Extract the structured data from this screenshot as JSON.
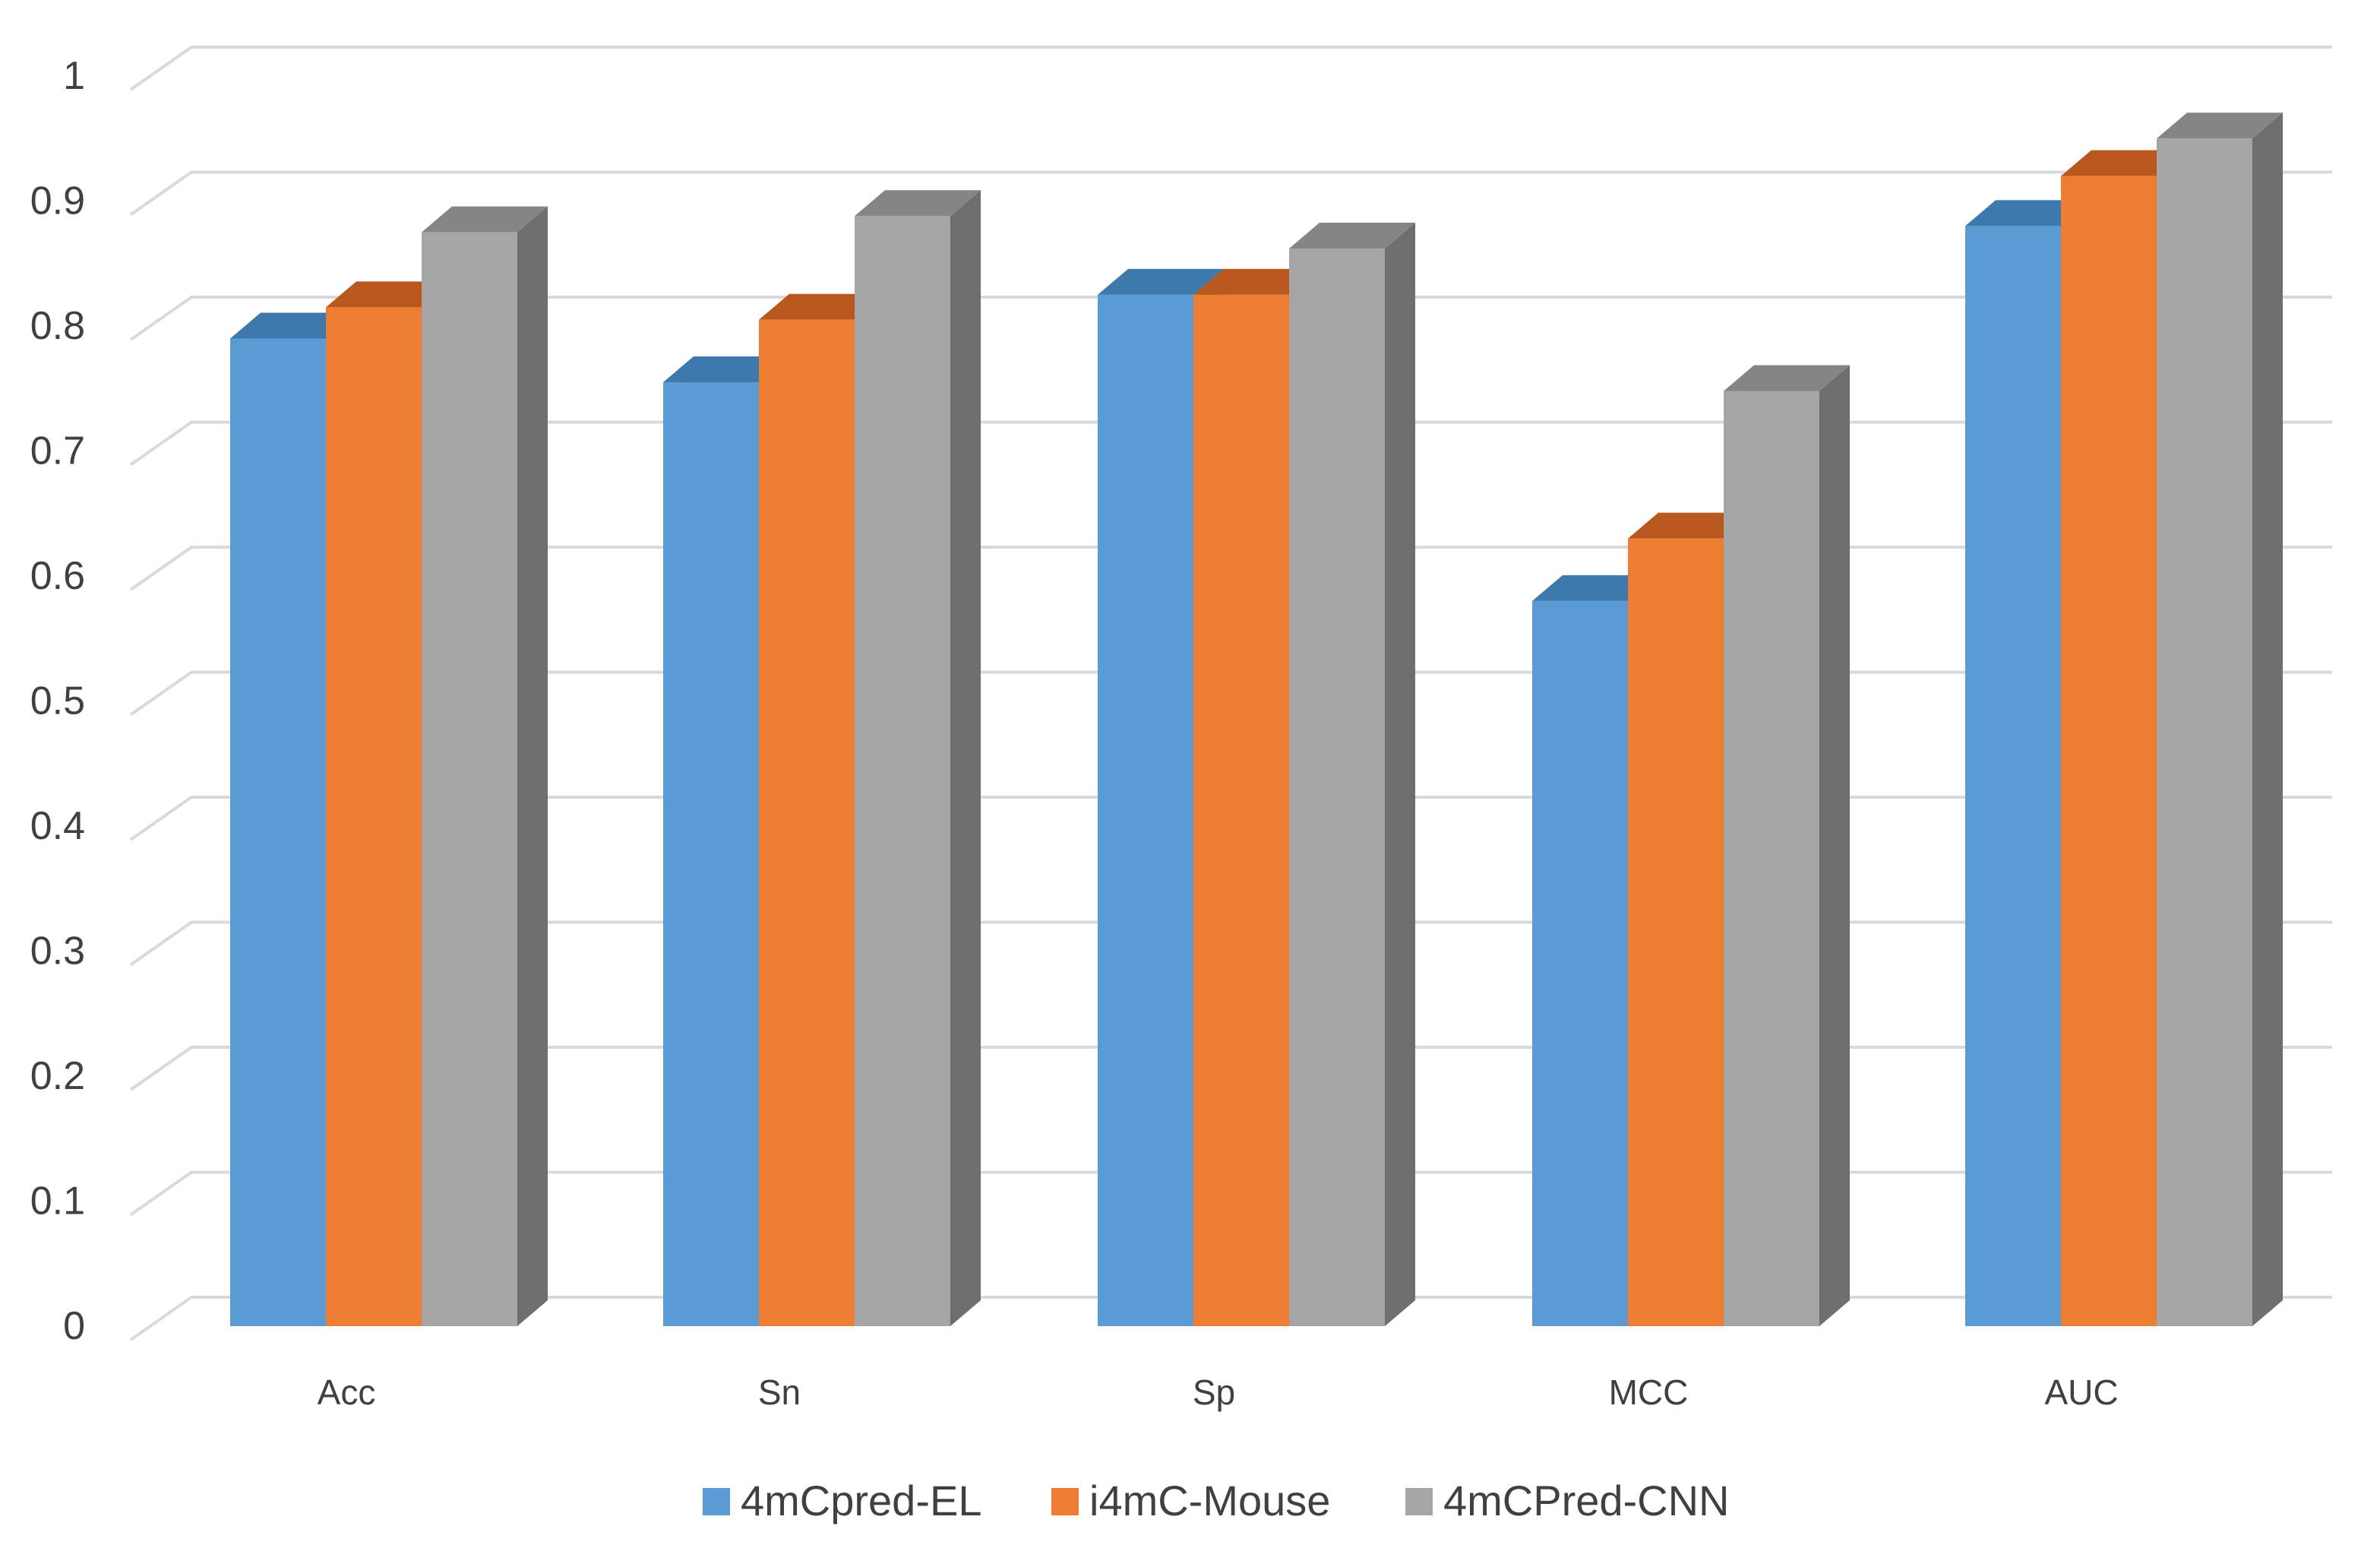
{
  "chart_data": {
    "type": "bar",
    "title": "",
    "xlabel": "",
    "ylabel": "",
    "categories": [
      "Acc",
      "Sn",
      "Sp",
      "MCC",
      "AUC"
    ],
    "series": [
      {
        "name": "4mCpred-EL",
        "values": [
          0.79,
          0.755,
          0.825,
          0.58,
          0.88
        ],
        "color": "#5B9BD5",
        "top_color": "#3E79AE",
        "side_color": "#4A86BD"
      },
      {
        "name": "i4mC-Mouse",
        "values": [
          0.815,
          0.805,
          0.825,
          0.63,
          0.92
        ],
        "color": "#ED7D31",
        "top_color": "#B9581E",
        "side_color": "#C9661F"
      },
      {
        "name": "4mCPred-CNN",
        "values": [
          0.875,
          0.888,
          0.862,
          0.748,
          0.95
        ],
        "color": "#A5A5A5",
        "top_color": "#858585",
        "side_color": "#6E6E6E"
      }
    ],
    "ylim": [
      0,
      1
    ],
    "yticks": [
      0,
      0.1,
      0.2,
      0.3,
      0.4,
      0.5,
      0.6,
      0.7,
      0.8,
      0.9,
      1
    ],
    "ytick_labels": [
      "0",
      "0.1",
      "0.2",
      "0.3",
      "0.4",
      "0.5",
      "0.6",
      "0.7",
      "0.8",
      "0.9",
      "1"
    ],
    "grid": true,
    "legend_position": "bottom",
    "style": "3d-clustered-column"
  }
}
